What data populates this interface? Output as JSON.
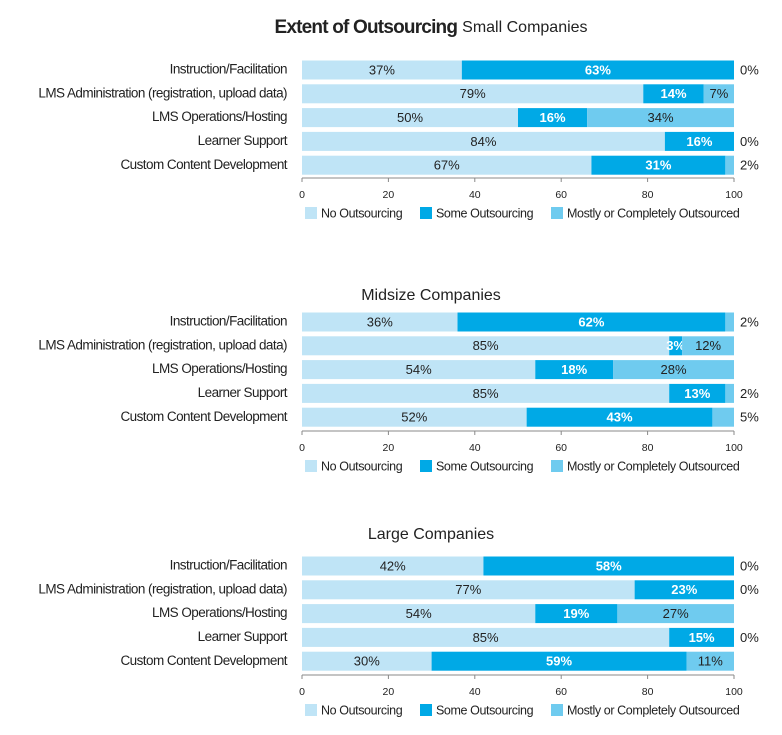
{
  "chart_data": [
    {
      "type": "bar",
      "stacked": true,
      "horizontal": true,
      "title": "Extent of Outsourcing",
      "subtitle": "Small Companies",
      "categories": [
        "Instruction/Facilitation",
        "LMS Administration (registration, upload data)",
        "LMS Operations/Hosting",
        "Learner Support",
        "Custom Content Development"
      ],
      "series": [
        {
          "name": "No Outsourcing",
          "color": "#bfe4f6",
          "values": [
            37,
            79,
            50,
            84,
            67
          ],
          "value_labels": [
            "37%",
            "79%",
            "50%",
            "84%",
            "67%"
          ]
        },
        {
          "name": "Some Outsourcing",
          "color": "#00a9e6",
          "values": [
            63,
            14,
            16,
            16,
            31
          ],
          "value_labels": [
            "63%",
            "14%",
            "16%",
            "16%",
            "31%"
          ]
        },
        {
          "name": "Mostly or Completely Outsourced",
          "color": "#6fcbef",
          "values": [
            0,
            7,
            34,
            0,
            2
          ],
          "value_labels": [
            "0%",
            "7%",
            "34%",
            "0%",
            "2%"
          ]
        }
      ],
      "xlim": [
        0,
        100
      ],
      "xticks": [
        0,
        20,
        40,
        60,
        80,
        100
      ]
    },
    {
      "type": "bar",
      "stacked": true,
      "horizontal": true,
      "title": "Midsize Companies",
      "categories": [
        "Instruction/Facilitation",
        "LMS Administration (registration, upload data)",
        "LMS Operations/Hosting",
        "Learner Support",
        "Custom Content Development"
      ],
      "series": [
        {
          "name": "No Outsourcing",
          "color": "#bfe4f6",
          "values": [
            36,
            85,
            54,
            85,
            52
          ],
          "value_labels": [
            "36%",
            "85%",
            "54%",
            "85%",
            "52%"
          ]
        },
        {
          "name": "Some Outsourcing",
          "color": "#00a9e6",
          "values": [
            62,
            3,
            18,
            13,
            43
          ],
          "value_labels": [
            "62%",
            "3%",
            "18%",
            "13%",
            "43%"
          ]
        },
        {
          "name": "Mostly or Completely Outsourced",
          "color": "#6fcbef",
          "values": [
            2,
            12,
            28,
            2,
            5
          ],
          "value_labels": [
            "2%",
            "12%",
            "28%",
            "2%",
            "5%"
          ]
        }
      ],
      "xlim": [
        0,
        100
      ],
      "xticks": [
        0,
        20,
        40,
        60,
        80,
        100
      ]
    },
    {
      "type": "bar",
      "stacked": true,
      "horizontal": true,
      "title": "Large Companies",
      "categories": [
        "Instruction/Facilitation",
        "LMS Administration (registration, upload data)",
        "LMS Operations/Hosting",
        "Learner Support",
        "Custom Content Development"
      ],
      "series": [
        {
          "name": "No Outsourcing",
          "color": "#bfe4f6",
          "values": [
            42,
            77,
            54,
            85,
            30
          ],
          "value_labels": [
            "42%",
            "77%",
            "54%",
            "85%",
            "30%"
          ]
        },
        {
          "name": "Some Outsourcing",
          "color": "#00a9e6",
          "values": [
            58,
            23,
            19,
            15,
            59
          ],
          "value_labels": [
            "58%",
            "23%",
            "19%",
            "15%",
            "59%"
          ]
        },
        {
          "name": "Mostly or Completely Outsourced",
          "color": "#6fcbef",
          "values": [
            0,
            0,
            27,
            0,
            11
          ],
          "value_labels": [
            "0%",
            "0%",
            "27%",
            "0%",
            "11%"
          ]
        }
      ],
      "xlim": [
        0,
        100
      ],
      "xticks": [
        0,
        20,
        40,
        60,
        80,
        100
      ]
    }
  ]
}
